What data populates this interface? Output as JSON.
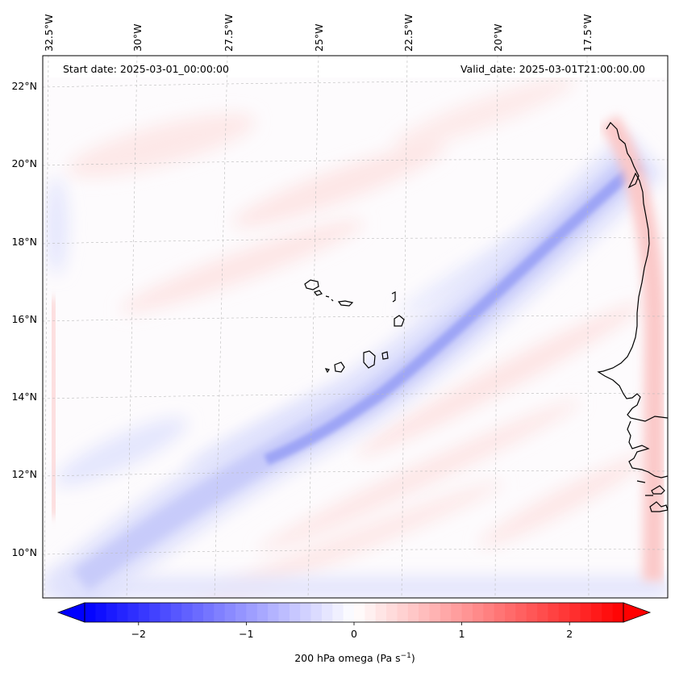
{
  "header": {
    "start_date": "Start date: 2025-03-01_00:00:00",
    "valid_date": "Valid_date: 2025-03-01T21:00:00.00"
  },
  "map": {
    "projection": "lambert-conformal",
    "lon_range": [
      -33,
      -15.5
    ],
    "lat_range": [
      9,
      22.5
    ],
    "lon_labels": [
      "32.5°W",
      "30°W",
      "27.5°W",
      "25°W",
      "22.5°W",
      "20°W",
      "17.5°W"
    ],
    "lat_labels": [
      "22°N",
      "20°N",
      "18°N",
      "16°N",
      "14°N",
      "12°N",
      "10°N"
    ],
    "coastline_color": "#000000",
    "gridline_color": "#bbbbbb"
  },
  "field": {
    "name": "200 hPa omega",
    "feature": "southwest–northeast band of negative omega (ascent) from ~10°N 33°W to ~20°N 17°W, weak positive streaks elsewhere, positive strip near West African coast"
  },
  "colorbar": {
    "label_prefix": "200 hPa omega (Pa s",
    "label_exp": "−1",
    "label_suffix": ")",
    "ticks": [
      "−2",
      "−1",
      "0",
      "1",
      "2"
    ],
    "tick_values": [
      -2,
      -1,
      0,
      1,
      2
    ],
    "range": [
      -2.5,
      2.5
    ],
    "colormap": "bwr",
    "min_color": "#0000ff",
    "mid_color": "#ffffff",
    "max_color": "#ff0000",
    "extend": "both"
  }
}
